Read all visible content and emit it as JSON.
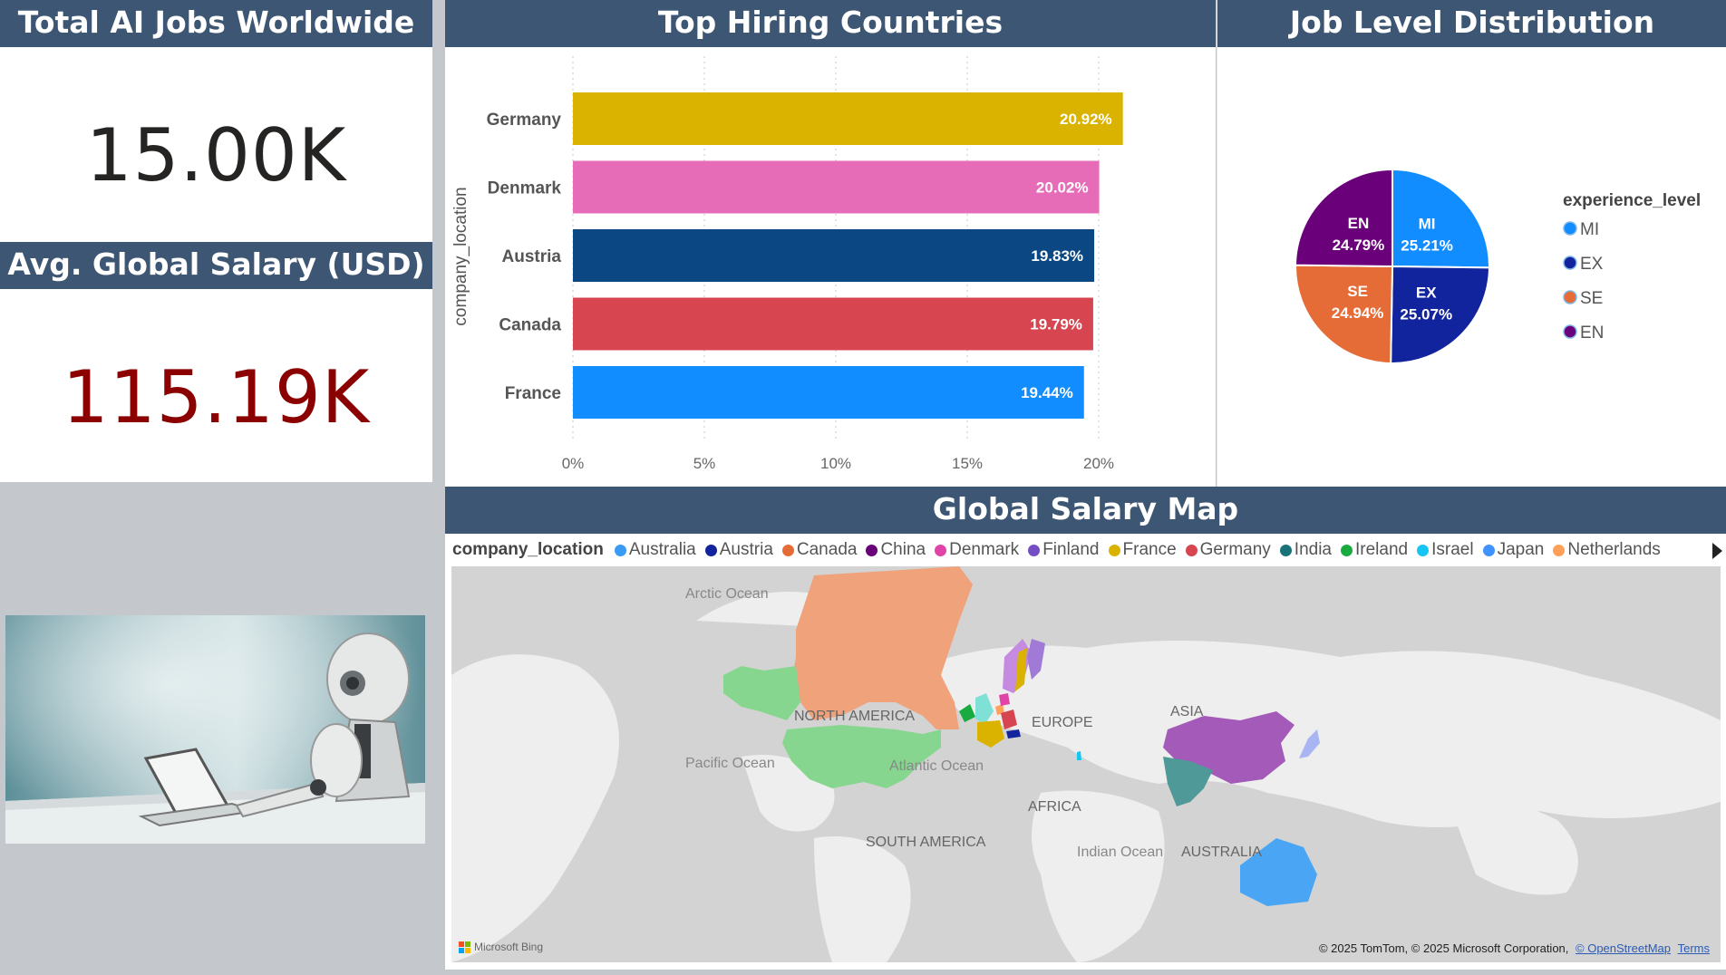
{
  "kpi_jobs": {
    "title": "Total AI Jobs Worldwide",
    "value": "15.00K"
  },
  "kpi_salary": {
    "title": "Avg. Global Salary (USD)",
    "value": "115.19K",
    "color": "#8b0000"
  },
  "image": {
    "alt": "Robot typing on laptop",
    "icon": "robot-laptop-image"
  },
  "bar_panel": {
    "title": "Top Hiring Countries"
  },
  "pie_panel": {
    "title": "Job Level Distribution"
  },
  "map_panel": {
    "title": "Global Salary Map",
    "legend_title": "company_location",
    "legend": [
      {
        "name": "Australia",
        "color": "#3a9bf4"
      },
      {
        "name": "Austria",
        "color": "#12239e"
      },
      {
        "name": "Canada",
        "color": "#e66c37"
      },
      {
        "name": "China",
        "color": "#6b007b"
      },
      {
        "name": "Denmark",
        "color": "#e044a7"
      },
      {
        "name": "Finland",
        "color": "#744ec2"
      },
      {
        "name": "France",
        "color": "#d9b300"
      },
      {
        "name": "Germany",
        "color": "#d64550"
      },
      {
        "name": "India",
        "color": "#197278"
      },
      {
        "name": "Ireland",
        "color": "#1aab40"
      },
      {
        "name": "Israel",
        "color": "#15c6f4"
      },
      {
        "name": "Japan",
        "color": "#4092ff"
      },
      {
        "name": "Netherlands",
        "color": "#ffa058"
      }
    ],
    "labels": {
      "arctic": "Arctic Ocean",
      "north_america": "NORTH AMERICA",
      "pacific": "Pacific Ocean",
      "atlantic": "Atlantic Ocean",
      "europe": "EUROPE",
      "asia": "ASIA",
      "africa": "AFRICA",
      "south_america": "SOUTH AMERICA",
      "indian": "Indian Ocean",
      "australia": "AUSTRALIA"
    },
    "credits": "© 2025 TomTom, © 2025 Microsoft Corporation,",
    "osm_link": "© OpenStreetMap",
    "terms_link": "Terms",
    "bing": "Microsoft Bing"
  },
  "chart_data": [
    {
      "type": "bar",
      "orientation": "horizontal",
      "title": "Top Hiring Countries",
      "ylabel": "company_location",
      "xlabel": "",
      "categories": [
        "Germany",
        "Denmark",
        "Austria",
        "Canada",
        "France"
      ],
      "values": [
        20.92,
        20.02,
        19.83,
        19.79,
        19.44
      ],
      "value_labels": [
        "20.92%",
        "20.02%",
        "19.83%",
        "19.79%",
        "19.44%"
      ],
      "colors": [
        "#d9b300",
        "#e66cb8",
        "#0b4783",
        "#d64550",
        "#118dff"
      ],
      "xlim": [
        0,
        20
      ],
      "xticks": [
        "0%",
        "5%",
        "10%",
        "15%",
        "20%"
      ],
      "grid": true
    },
    {
      "type": "pie",
      "title": "Job Level Distribution",
      "legend_title": "experience_level",
      "legend_position": "right",
      "slices": [
        {
          "label": "MI",
          "value": 25.21,
          "text": "25.21%",
          "color": "#118dff"
        },
        {
          "label": "EX",
          "value": 25.07,
          "text": "25.07%",
          "color": "#12239e"
        },
        {
          "label": "SE",
          "value": 24.94,
          "text": "24.94%",
          "color": "#e66c37"
        },
        {
          "label": "EN",
          "value": 24.79,
          "text": "24.79%",
          "color": "#6b007b"
        }
      ]
    }
  ]
}
